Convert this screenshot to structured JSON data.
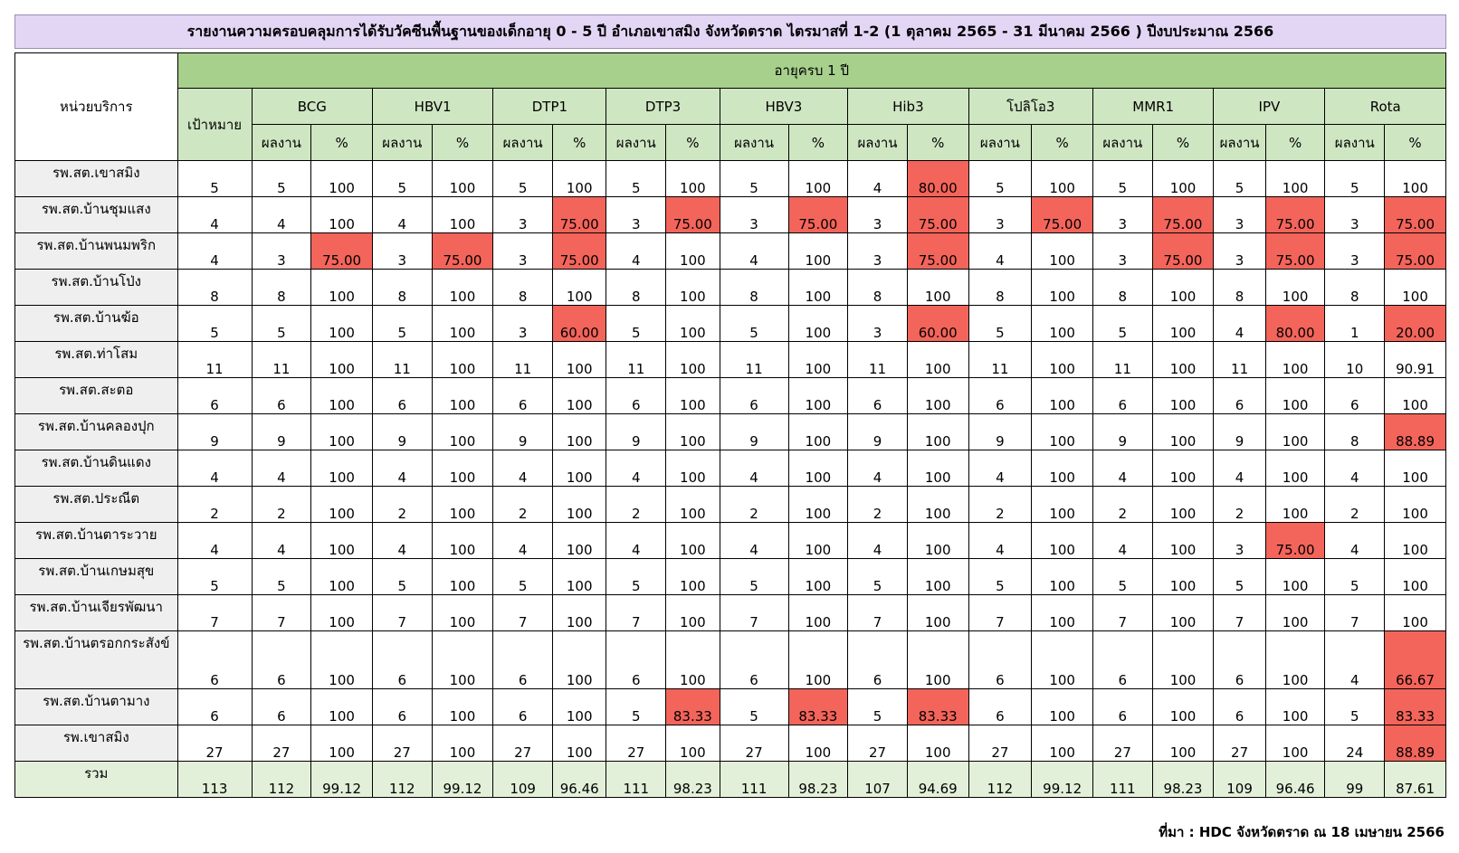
{
  "title": "รายงานความครอบคลุมการได้รับวัคซีนพื้นฐานของเด็กอายุ 0 - 5 ปี อำเภอเขาสมิง จังหวัดตราด ไตรมาสที่ 1-2 (1 ตุลาคม 2565 - 31 มีนาคม 2566 ) ปีงบประมาณ 2566",
  "headers": {
    "unit": "หน่วยบริการ",
    "age_group": "อายุครบ 1 ปี",
    "target": "เป้าหมาย",
    "result": "ผลงาน",
    "percent": "%",
    "vaccines": [
      "BCG",
      "HBV1",
      "DTP1",
      "DTP3",
      "HBV3",
      "Hib3",
      "โปลิโอ3",
      "MMR1",
      "IPV",
      "Rota"
    ]
  },
  "rows": [
    {
      "name": "รพ.สต.เขาสมิง",
      "target": "5",
      "cells": [
        [
          "5",
          "100"
        ],
        [
          "5",
          "100"
        ],
        [
          "5",
          "100"
        ],
        [
          "5",
          "100"
        ],
        [
          "5",
          "100"
        ],
        [
          "4",
          "80.00"
        ],
        [
          "5",
          "100"
        ],
        [
          "5",
          "100"
        ],
        [
          "5",
          "100"
        ],
        [
          "5",
          "100"
        ]
      ]
    },
    {
      "name": "รพ.สต.บ้านชุมแสง",
      "target": "4",
      "cells": [
        [
          "4",
          "100"
        ],
        [
          "4",
          "100"
        ],
        [
          "3",
          "75.00"
        ],
        [
          "3",
          "75.00"
        ],
        [
          "3",
          "75.00"
        ],
        [
          "3",
          "75.00"
        ],
        [
          "3",
          "75.00"
        ],
        [
          "3",
          "75.00"
        ],
        [
          "3",
          "75.00"
        ],
        [
          "3",
          "75.00"
        ]
      ]
    },
    {
      "name": "รพ.สต.บ้านพนมพริก",
      "target": "4",
      "cells": [
        [
          "3",
          "75.00"
        ],
        [
          "3",
          "75.00"
        ],
        [
          "3",
          "75.00"
        ],
        [
          "4",
          "100"
        ],
        [
          "4",
          "100"
        ],
        [
          "3",
          "75.00"
        ],
        [
          "4",
          "100"
        ],
        [
          "3",
          "75.00"
        ],
        [
          "3",
          "75.00"
        ],
        [
          "3",
          "75.00"
        ]
      ]
    },
    {
      "name": "รพ.สต.บ้านโป่ง",
      "target": "8",
      "cells": [
        [
          "8",
          "100"
        ],
        [
          "8",
          "100"
        ],
        [
          "8",
          "100"
        ],
        [
          "8",
          "100"
        ],
        [
          "8",
          "100"
        ],
        [
          "8",
          "100"
        ],
        [
          "8",
          "100"
        ],
        [
          "8",
          "100"
        ],
        [
          "8",
          "100"
        ],
        [
          "8",
          "100"
        ]
      ]
    },
    {
      "name": "รพ.สต.บ้านฆ้อ",
      "target": "5",
      "cells": [
        [
          "5",
          "100"
        ],
        [
          "5",
          "100"
        ],
        [
          "3",
          "60.00"
        ],
        [
          "5",
          "100"
        ],
        [
          "5",
          "100"
        ],
        [
          "3",
          "60.00"
        ],
        [
          "5",
          "100"
        ],
        [
          "5",
          "100"
        ],
        [
          "4",
          "80.00"
        ],
        [
          "1",
          "20.00"
        ]
      ]
    },
    {
      "name": "รพ.สต.ท่าโสม",
      "target": "11",
      "cells": [
        [
          "11",
          "100"
        ],
        [
          "11",
          "100"
        ],
        [
          "11",
          "100"
        ],
        [
          "11",
          "100"
        ],
        [
          "11",
          "100"
        ],
        [
          "11",
          "100"
        ],
        [
          "11",
          "100"
        ],
        [
          "11",
          "100"
        ],
        [
          "11",
          "100"
        ],
        [
          "10",
          "90.91"
        ]
      ]
    },
    {
      "name": "รพ.สต.สะตอ",
      "target": "6",
      "cells": [
        [
          "6",
          "100"
        ],
        [
          "6",
          "100"
        ],
        [
          "6",
          "100"
        ],
        [
          "6",
          "100"
        ],
        [
          "6",
          "100"
        ],
        [
          "6",
          "100"
        ],
        [
          "6",
          "100"
        ],
        [
          "6",
          "100"
        ],
        [
          "6",
          "100"
        ],
        [
          "6",
          "100"
        ]
      ]
    },
    {
      "name": "รพ.สต.บ้านคลองปุก",
      "target": "9",
      "cells": [
        [
          "9",
          "100"
        ],
        [
          "9",
          "100"
        ],
        [
          "9",
          "100"
        ],
        [
          "9",
          "100"
        ],
        [
          "9",
          "100"
        ],
        [
          "9",
          "100"
        ],
        [
          "9",
          "100"
        ],
        [
          "9",
          "100"
        ],
        [
          "9",
          "100"
        ],
        [
          "8",
          "88.89"
        ]
      ]
    },
    {
      "name": "รพ.สต.บ้านดินแดง",
      "target": "4",
      "cells": [
        [
          "4",
          "100"
        ],
        [
          "4",
          "100"
        ],
        [
          "4",
          "100"
        ],
        [
          "4",
          "100"
        ],
        [
          "4",
          "100"
        ],
        [
          "4",
          "100"
        ],
        [
          "4",
          "100"
        ],
        [
          "4",
          "100"
        ],
        [
          "4",
          "100"
        ],
        [
          "4",
          "100"
        ]
      ]
    },
    {
      "name": "รพ.สต.ประณีต",
      "target": "2",
      "cells": [
        [
          "2",
          "100"
        ],
        [
          "2",
          "100"
        ],
        [
          "2",
          "100"
        ],
        [
          "2",
          "100"
        ],
        [
          "2",
          "100"
        ],
        [
          "2",
          "100"
        ],
        [
          "2",
          "100"
        ],
        [
          "2",
          "100"
        ],
        [
          "2",
          "100"
        ],
        [
          "2",
          "100"
        ]
      ]
    },
    {
      "name": "รพ.สต.บ้านตาระวาย",
      "target": "4",
      "cells": [
        [
          "4",
          "100"
        ],
        [
          "4",
          "100"
        ],
        [
          "4",
          "100"
        ],
        [
          "4",
          "100"
        ],
        [
          "4",
          "100"
        ],
        [
          "4",
          "100"
        ],
        [
          "4",
          "100"
        ],
        [
          "4",
          "100"
        ],
        [
          "3",
          "75.00"
        ],
        [
          "4",
          "100"
        ]
      ]
    },
    {
      "name": "รพ.สต.บ้านเกษมสุข",
      "target": "5",
      "cells": [
        [
          "5",
          "100"
        ],
        [
          "5",
          "100"
        ],
        [
          "5",
          "100"
        ],
        [
          "5",
          "100"
        ],
        [
          "5",
          "100"
        ],
        [
          "5",
          "100"
        ],
        [
          "5",
          "100"
        ],
        [
          "5",
          "100"
        ],
        [
          "5",
          "100"
        ],
        [
          "5",
          "100"
        ]
      ]
    },
    {
      "name": "รพ.สต.บ้านเจียรพัฒนา",
      "target": "7",
      "cells": [
        [
          "7",
          "100"
        ],
        [
          "7",
          "100"
        ],
        [
          "7",
          "100"
        ],
        [
          "7",
          "100"
        ],
        [
          "7",
          "100"
        ],
        [
          "7",
          "100"
        ],
        [
          "7",
          "100"
        ],
        [
          "7",
          "100"
        ],
        [
          "7",
          "100"
        ],
        [
          "7",
          "100"
        ]
      ]
    },
    {
      "name": "รพ.สต.บ้านตรอกกระสังข์",
      "target": "6",
      "cells": [
        [
          "6",
          "100"
        ],
        [
          "6",
          "100"
        ],
        [
          "6",
          "100"
        ],
        [
          "6",
          "100"
        ],
        [
          "6",
          "100"
        ],
        [
          "6",
          "100"
        ],
        [
          "6",
          "100"
        ],
        [
          "6",
          "100"
        ],
        [
          "6",
          "100"
        ],
        [
          "4",
          "66.67"
        ]
      ]
    },
    {
      "name": "รพ.สต.บ้านตามาง",
      "target": "6",
      "cells": [
        [
          "6",
          "100"
        ],
        [
          "6",
          "100"
        ],
        [
          "6",
          "100"
        ],
        [
          "5",
          "83.33"
        ],
        [
          "5",
          "83.33"
        ],
        [
          "5",
          "83.33"
        ],
        [
          "6",
          "100"
        ],
        [
          "6",
          "100"
        ],
        [
          "6",
          "100"
        ],
        [
          "5",
          "83.33"
        ]
      ]
    },
    {
      "name": "รพ.เขาสมิง",
      "target": "27",
      "cells": [
        [
          "27",
          "100"
        ],
        [
          "27",
          "100"
        ],
        [
          "27",
          "100"
        ],
        [
          "27",
          "100"
        ],
        [
          "27",
          "100"
        ],
        [
          "27",
          "100"
        ],
        [
          "27",
          "100"
        ],
        [
          "27",
          "100"
        ],
        [
          "27",
          "100"
        ],
        [
          "24",
          "88.89"
        ]
      ]
    }
  ],
  "total": {
    "name": "รวม",
    "target": "113",
    "cells": [
      [
        "112",
        "99.12"
      ],
      [
        "112",
        "99.12"
      ],
      [
        "109",
        "96.46"
      ],
      [
        "111",
        "98.23"
      ],
      [
        "111",
        "98.23"
      ],
      [
        "107",
        "94.69"
      ],
      [
        "112",
        "99.12"
      ],
      [
        "111",
        "98.23"
      ],
      [
        "109",
        "96.46"
      ],
      [
        "99",
        "87.61"
      ]
    ]
  },
  "highlight_color": "#f3645a",
  "highlight_rule": "percent below 100 highlighted red except 90.91",
  "source": "ที่มา : HDC จังหวัดตราด ณ 18 เมษายน 2566"
}
